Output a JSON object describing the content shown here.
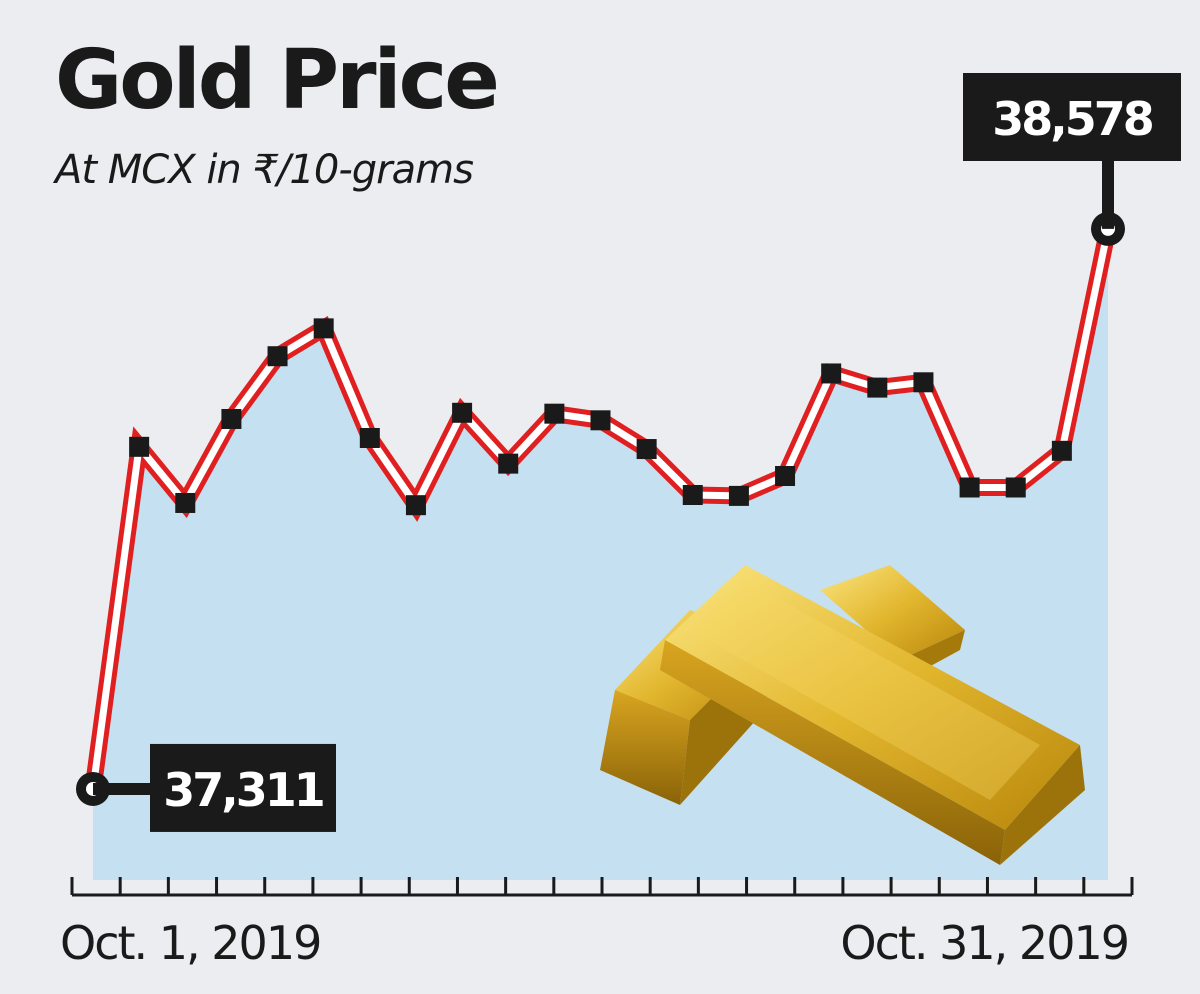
{
  "chart_data": {
    "type": "line",
    "title": "Gold Price",
    "subtitle": "At MCX in ₹/10-grams",
    "x_start_label": "Oct. 1, 2019",
    "x_end_label": "Oct. 31, 2019",
    "ylim": [
      37200,
      38700
    ],
    "series": [
      {
        "values": [
          37311,
          38085,
          37958,
          38148,
          38290,
          38353,
          38105,
          37953,
          38162,
          38047,
          38160,
          38145,
          38080,
          37976,
          37974,
          38019,
          38251,
          38219,
          38231,
          37993,
          37993,
          38076,
          38578
        ]
      }
    ],
    "start_value_label": "37,311",
    "end_value_label": "38,578",
    "tick_count": 23,
    "colors": {
      "line": "#e02020",
      "line_inner": "#ffffff",
      "fill": "#c5e0f0",
      "marker": "#1a1a1a",
      "callout_bg": "#1a1a1a",
      "callout_text": "#ffffff",
      "gold_light": "#f6d860",
      "gold_dark": "#b8860b"
    }
  }
}
